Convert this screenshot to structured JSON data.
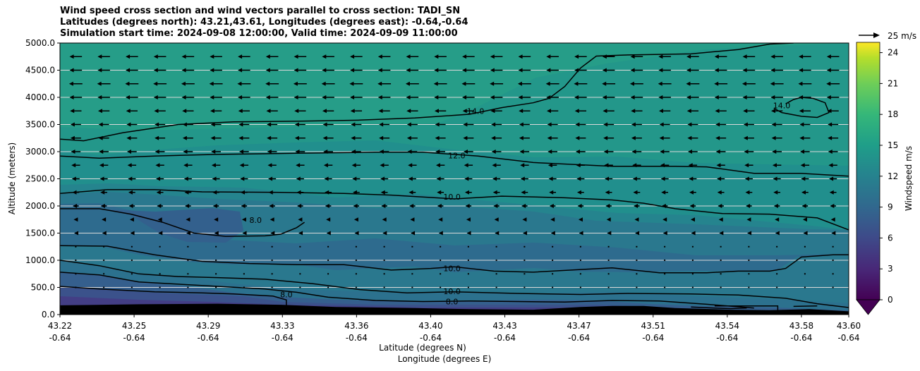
{
  "chart_data": {
    "type": "contourf",
    "title_lines": [
      "Wind speed cross section and wind vectors parallel to cross section: TADI_SN",
      "Latitudes (degrees north): 43.21,43.61, Longitudes (degrees east): -0.64,-0.64",
      "Simulation start time: 2024-09-08 12:00:00, Valid time: 2024-09-09 11:00:00"
    ],
    "ylabel": "Altitude (meters)",
    "xlabel_lat": "Latitude (degrees N)",
    "xlabel_lon": "Longitude (degrees E)",
    "ylim": [
      0,
      5000
    ],
    "y_ticks": [
      "0.0",
      "500.0",
      "1000.0",
      "1500.0",
      "2000.0",
      "2500.0",
      "3000.0",
      "3500.0",
      "4000.0",
      "4500.0",
      "5000.0"
    ],
    "x_ticks": [
      {
        "lat": "43.22",
        "lon": "-0.64"
      },
      {
        "lat": "43.25",
        "lon": "-0.64"
      },
      {
        "lat": "43.29",
        "lon": "-0.64"
      },
      {
        "lat": "43.33",
        "lon": "-0.64"
      },
      {
        "lat": "43.36",
        "lon": "-0.64"
      },
      {
        "lat": "43.40",
        "lon": "-0.64"
      },
      {
        "lat": "43.43",
        "lon": "-0.64"
      },
      {
        "lat": "43.47",
        "lon": "-0.64"
      },
      {
        "lat": "43.51",
        "lon": "-0.64"
      },
      {
        "lat": "43.54",
        "lon": "-0.64"
      },
      {
        "lat": "43.58",
        "lon": "-0.64"
      },
      {
        "lat": "43.60",
        "lon": "-0.64"
      }
    ],
    "colorbar": {
      "label": "Windspeed m/s",
      "min": 0,
      "max": 25,
      "ticks": [
        "0",
        "3",
        "6",
        "9",
        "12",
        "15",
        "18",
        "21",
        "24"
      ],
      "extend": "min"
    },
    "quiver_key": "25 m/s",
    "contour_labels": [
      {
        "text": "14.0",
        "x_frac": 0.527,
        "alt": 3750
      },
      {
        "text": "14.0",
        "x_frac": 0.915,
        "alt": 3850
      },
      {
        "text": "12.0",
        "x_frac": 0.503,
        "alt": 2930
      },
      {
        "text": "10.0",
        "x_frac": 0.497,
        "alt": 2170
      },
      {
        "text": "8.0",
        "x_frac": 0.248,
        "alt": 1740
      },
      {
        "text": "10.0",
        "x_frac": 0.497,
        "alt": 850
      },
      {
        "text": "10.0",
        "x_frac": 0.497,
        "alt": 430
      },
      {
        "text": "8.0",
        "x_frac": 0.287,
        "alt": 370
      },
      {
        "text": "8.0",
        "x_frac": 0.497,
        "alt": 240
      }
    ],
    "contours": [
      {
        "level": "14.0",
        "points": [
          [
            0,
            3230
          ],
          [
            0.03,
            3200
          ],
          [
            0.08,
            3350
          ],
          [
            0.15,
            3500
          ],
          [
            0.22,
            3550
          ],
          [
            0.3,
            3560
          ],
          [
            0.38,
            3580
          ],
          [
            0.45,
            3620
          ],
          [
            0.52,
            3690
          ],
          [
            0.56,
            3810
          ],
          [
            0.6,
            3900
          ],
          [
            0.62,
            3980
          ],
          [
            0.64,
            4200
          ],
          [
            0.66,
            4540
          ],
          [
            0.68,
            4760
          ],
          [
            0.72,
            4780
          ],
          [
            0.8,
            4800
          ],
          [
            0.86,
            4880
          ],
          [
            0.9,
            4980
          ],
          [
            0.93,
            5000
          ]
        ]
      },
      {
        "level": "14.0",
        "points": [
          [
            0.905,
            3800
          ],
          [
            0.915,
            3720
          ],
          [
            0.94,
            3650
          ],
          [
            0.96,
            3630
          ],
          [
            0.975,
            3720
          ],
          [
            0.97,
            3900
          ],
          [
            0.955,
            3980
          ],
          [
            0.94,
            4000
          ],
          [
            0.93,
            3960
          ],
          [
            0.92,
            3880
          ]
        ]
      },
      {
        "level": "12.0",
        "points": [
          [
            0,
            2920
          ],
          [
            0.05,
            2880
          ],
          [
            0.12,
            2920
          ],
          [
            0.2,
            2950
          ],
          [
            0.3,
            2970
          ],
          [
            0.4,
            2990
          ],
          [
            0.46,
            2990
          ],
          [
            0.53,
            2920
          ],
          [
            0.6,
            2800
          ],
          [
            0.7,
            2730
          ],
          [
            0.78,
            2730
          ],
          [
            0.82,
            2720
          ],
          [
            0.88,
            2600
          ],
          [
            0.94,
            2600
          ],
          [
            1,
            2550
          ]
        ]
      },
      {
        "level": "10.0",
        "points": [
          [
            0,
            2230
          ],
          [
            0.06,
            2300
          ],
          [
            0.12,
            2300
          ],
          [
            0.18,
            2260
          ],
          [
            0.28,
            2250
          ],
          [
            0.36,
            2230
          ],
          [
            0.42,
            2200
          ],
          [
            0.5,
            2130
          ],
          [
            0.56,
            2180
          ],
          [
            0.64,
            2150
          ],
          [
            0.7,
            2110
          ],
          [
            0.74,
            2050
          ],
          [
            0.78,
            1950
          ],
          [
            0.84,
            1860
          ],
          [
            0.9,
            1850
          ],
          [
            0.96,
            1780
          ],
          [
            1,
            1560
          ]
        ]
      },
      {
        "level": "8.0",
        "points": [
          [
            0,
            1950
          ],
          [
            0.05,
            1950
          ],
          [
            0.09,
            1850
          ],
          [
            0.13,
            1700
          ],
          [
            0.17,
            1500
          ],
          [
            0.21,
            1440
          ],
          [
            0.26,
            1450
          ],
          [
            0.28,
            1480
          ],
          [
            0.3,
            1600
          ],
          [
            0.31,
            1700
          ]
        ]
      },
      {
        "level": "10.0",
        "points": [
          [
            0,
            1270
          ],
          [
            0.06,
            1260
          ],
          [
            0.12,
            1100
          ],
          [
            0.18,
            980
          ],
          [
            0.24,
            940
          ],
          [
            0.3,
            920
          ],
          [
            0.36,
            920
          ],
          [
            0.42,
            820
          ],
          [
            0.47,
            850
          ],
          [
            0.5,
            880
          ],
          [
            0.55,
            800
          ],
          [
            0.6,
            780
          ],
          [
            0.66,
            830
          ],
          [
            0.7,
            860
          ],
          [
            0.76,
            770
          ],
          [
            0.82,
            770
          ],
          [
            0.86,
            800
          ],
          [
            0.9,
            800
          ],
          [
            0.92,
            850
          ],
          [
            0.94,
            1060
          ],
          [
            0.98,
            1100
          ],
          [
            1,
            1100
          ]
        ]
      },
      {
        "level": "10.0",
        "points": [
          [
            0,
            1000
          ],
          [
            0.05,
            900
          ],
          [
            0.1,
            750
          ],
          [
            0.15,
            700
          ],
          [
            0.2,
            680
          ],
          [
            0.26,
            650
          ],
          [
            0.32,
            570
          ],
          [
            0.38,
            460
          ],
          [
            0.44,
            400
          ],
          [
            0.5,
            420
          ],
          [
            0.58,
            390
          ],
          [
            0.66,
            370
          ],
          [
            0.72,
            390
          ],
          [
            0.8,
            380
          ],
          [
            0.86,
            360
          ],
          [
            0.92,
            300
          ],
          [
            0.96,
            200
          ],
          [
            1,
            130
          ]
        ]
      },
      {
        "level": "8.0",
        "points": [
          [
            0,
            780
          ],
          [
            0.05,
            730
          ],
          [
            0.1,
            600
          ],
          [
            0.15,
            560
          ],
          [
            0.2,
            520
          ],
          [
            0.26,
            470
          ],
          [
            0.3,
            410
          ],
          [
            0.34,
            320
          ],
          [
            0.4,
            260
          ],
          [
            0.46,
            240
          ],
          [
            0.52,
            250
          ],
          [
            0.58,
            240
          ],
          [
            0.64,
            230
          ],
          [
            0.7,
            260
          ],
          [
            0.76,
            250
          ],
          [
            0.82,
            190
          ],
          [
            0.88,
            120
          ]
        ]
      },
      {
        "level": "8.0",
        "points": [
          [
            0,
            520
          ],
          [
            0.05,
            470
          ],
          [
            0.12,
            420
          ],
          [
            0.18,
            400
          ],
          [
            0.22,
            380
          ],
          [
            0.27,
            340
          ],
          [
            0.287,
            270
          ],
          [
            0.287,
            0
          ]
        ]
      },
      {
        "level": "6.0",
        "points": [
          [
            0.8,
            140
          ],
          [
            0.83,
            120
          ],
          [
            0.85,
            110
          ],
          [
            0.87,
            120
          ],
          [
            0.87,
            110
          ]
        ]
      },
      {
        "level": "6.0",
        "points": [
          [
            0.83,
            160
          ],
          [
            0.91,
            160
          ],
          [
            0.91,
            80
          ]
        ]
      },
      {
        "level": "6.0",
        "points": [
          [
            0.93,
            150
          ],
          [
            0.96,
            160
          ]
        ]
      }
    ],
    "terrain_alt": [
      [
        0,
        170
      ],
      [
        0.1,
        190
      ],
      [
        0.2,
        200
      ],
      [
        0.28,
        180
      ],
      [
        0.35,
        140
      ],
      [
        0.45,
        120
      ],
      [
        0.52,
        100
      ],
      [
        0.6,
        90
      ],
      [
        0.66,
        140
      ],
      [
        0.7,
        160
      ],
      [
        0.74,
        160
      ],
      [
        0.78,
        120
      ],
      [
        0.85,
        90
      ],
      [
        0.9,
        80
      ],
      [
        0.95,
        100
      ],
      [
        1,
        60
      ]
    ],
    "vectors": [
      {
        "alt": 4750,
        "mag": 12
      },
      {
        "alt": 4500,
        "mag": 12
      },
      {
        "alt": 4250,
        "mag": 13
      },
      {
        "alt": 4000,
        "mag": 12
      },
      {
        "alt": 3750,
        "mag": 11
      },
      {
        "alt": 3500,
        "mag": 10
      },
      {
        "alt": 3250,
        "mag": 10
      },
      {
        "alt": 3000,
        "mag": 9
      },
      {
        "alt": 2750,
        "mag": 8
      },
      {
        "alt": 2500,
        "mag": 7
      },
      {
        "alt": 2250,
        "mag": 6
      },
      {
        "alt": 2000,
        "mag": 5
      },
      {
        "alt": 1750,
        "mag": 3
      },
      {
        "alt": 1500,
        "mag": 2
      },
      {
        "alt": 1250,
        "mag": 1
      },
      {
        "alt": 1000,
        "mag": 1
      },
      {
        "alt": 750,
        "mag": 1
      },
      {
        "alt": 500,
        "mag": 1
      }
    ]
  }
}
